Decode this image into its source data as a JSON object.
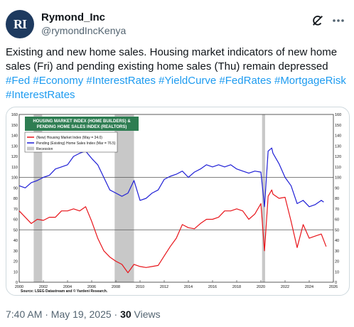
{
  "tweet": {
    "display_name": "Rymond_Inc",
    "handle": "@rymondIncKenya",
    "avatar_text": "RI",
    "text": "Existing and new home sales. Housing market indicators of new home sales (Fri) and pending existing home sales (Thu) remain depressed",
    "hashtags": "#Fed #Economy #InterestRates #YieldCurve #FedRates #MortgageRisk #InterestRates",
    "time": "7:40 AM · May 19, 2025 · ",
    "views_count": "30",
    "views_label": " Views",
    "icons": {
      "grok": "grok-icon",
      "more": "more-icon"
    }
  },
  "chart_data": {
    "type": "line",
    "title_lines": [
      "HOUSING MARKET INDEX (HOME BUILDERS) &",
      "PENDING HOME SALES INDEX (REALTORS)"
    ],
    "legend": [
      "(New) Housing Market Index (May = 34.0)",
      "Pending (Existing) Home Sales Index (Mar = 76.5)",
      "Recession"
    ],
    "source": "Source: LSEG Datastream and © Yardeni Research.",
    "xlim": [
      2000,
      2026
    ],
    "ylim": [
      0,
      160
    ],
    "x_ticks": [
      "2000",
      "2002",
      "2004",
      "2006",
      "2008",
      "2010",
      "2012",
      "2014",
      "2016",
      "2018",
      "2020",
      "2022",
      "2024",
      "2026"
    ],
    "y_ticks": [
      "0",
      "10",
      "20",
      "30",
      "40",
      "50",
      "60",
      "70",
      "80",
      "90",
      "100",
      "110",
      "120",
      "130",
      "140",
      "150",
      "160"
    ],
    "reference_lines": [
      100,
      50
    ],
    "recessions": [
      [
        2001.2,
        2001.9
      ],
      [
        2007.9,
        2009.5
      ],
      [
        2020.1,
        2020.35
      ]
    ],
    "colors": {
      "hmi": "#e8141a",
      "pending": "#1f1fd6",
      "recession": "#c8c8c8",
      "title_bg": "#2e7d52"
    },
    "series": [
      {
        "name": "(New) Housing Market Index (May = 34.0)",
        "x": [
          2000,
          2000.5,
          2001,
          2001.5,
          2002,
          2002.5,
          2003,
          2003.5,
          2004,
          2004.5,
          2005,
          2005.5,
          2006,
          2006.5,
          2007,
          2007.5,
          2008,
          2008.5,
          2009,
          2009.5,
          2010,
          2010.5,
          2011,
          2011.5,
          2012,
          2012.5,
          2013,
          2013.5,
          2014,
          2014.5,
          2015,
          2015.5,
          2016,
          2016.5,
          2017,
          2017.5,
          2018,
          2018.5,
          2019,
          2019.5,
          2020,
          2020.3,
          2020.6,
          2020.9,
          2021,
          2021.5,
          2022,
          2022.5,
          2023,
          2023.5,
          2024,
          2024.5,
          2025,
          2025.4
        ],
        "values": [
          68,
          62,
          56,
          60,
          59,
          62,
          62,
          68,
          68,
          70,
          68,
          72,
          58,
          42,
          30,
          24,
          20,
          17,
          9,
          17,
          15,
          14,
          15,
          16,
          25,
          34,
          42,
          55,
          52,
          51,
          56,
          60,
          60,
          62,
          68,
          68,
          70,
          68,
          60,
          65,
          75,
          30,
          82,
          88,
          84,
          80,
          81,
          58,
          33,
          55,
          42,
          44,
          46,
          34
        ]
      },
      {
        "name": "Pending (Existing) Home Sales Index (Mar = 76.5)",
        "x": [
          2000,
          2000.5,
          2001,
          2001.5,
          2002,
          2002.5,
          2003,
          2003.5,
          2004,
          2004.5,
          2005,
          2005.5,
          2006,
          2006.5,
          2007,
          2007.5,
          2008,
          2008.5,
          2009,
          2009.5,
          2010,
          2010.5,
          2011,
          2011.5,
          2012,
          2012.5,
          2013,
          2013.5,
          2014,
          2014.5,
          2015,
          2015.5,
          2016,
          2016.5,
          2017,
          2017.5,
          2018,
          2018.5,
          2019,
          2019.5,
          2020,
          2020.3,
          2020.6,
          2020.9,
          2021,
          2021.5,
          2022,
          2022.5,
          2023,
          2023.5,
          2024,
          2024.5,
          2025,
          2025.2
        ],
        "values": [
          92,
          90,
          95,
          97,
          100,
          102,
          108,
          110,
          112,
          120,
          123,
          125,
          118,
          112,
          100,
          88,
          85,
          82,
          85,
          97,
          78,
          80,
          85,
          88,
          98,
          101,
          103,
          106,
          100,
          105,
          108,
          112,
          110,
          112,
          110,
          112,
          108,
          106,
          104,
          106,
          105,
          72,
          125,
          128,
          123,
          113,
          100,
          92,
          75,
          78,
          72,
          74,
          78,
          76.5
        ]
      }
    ]
  }
}
